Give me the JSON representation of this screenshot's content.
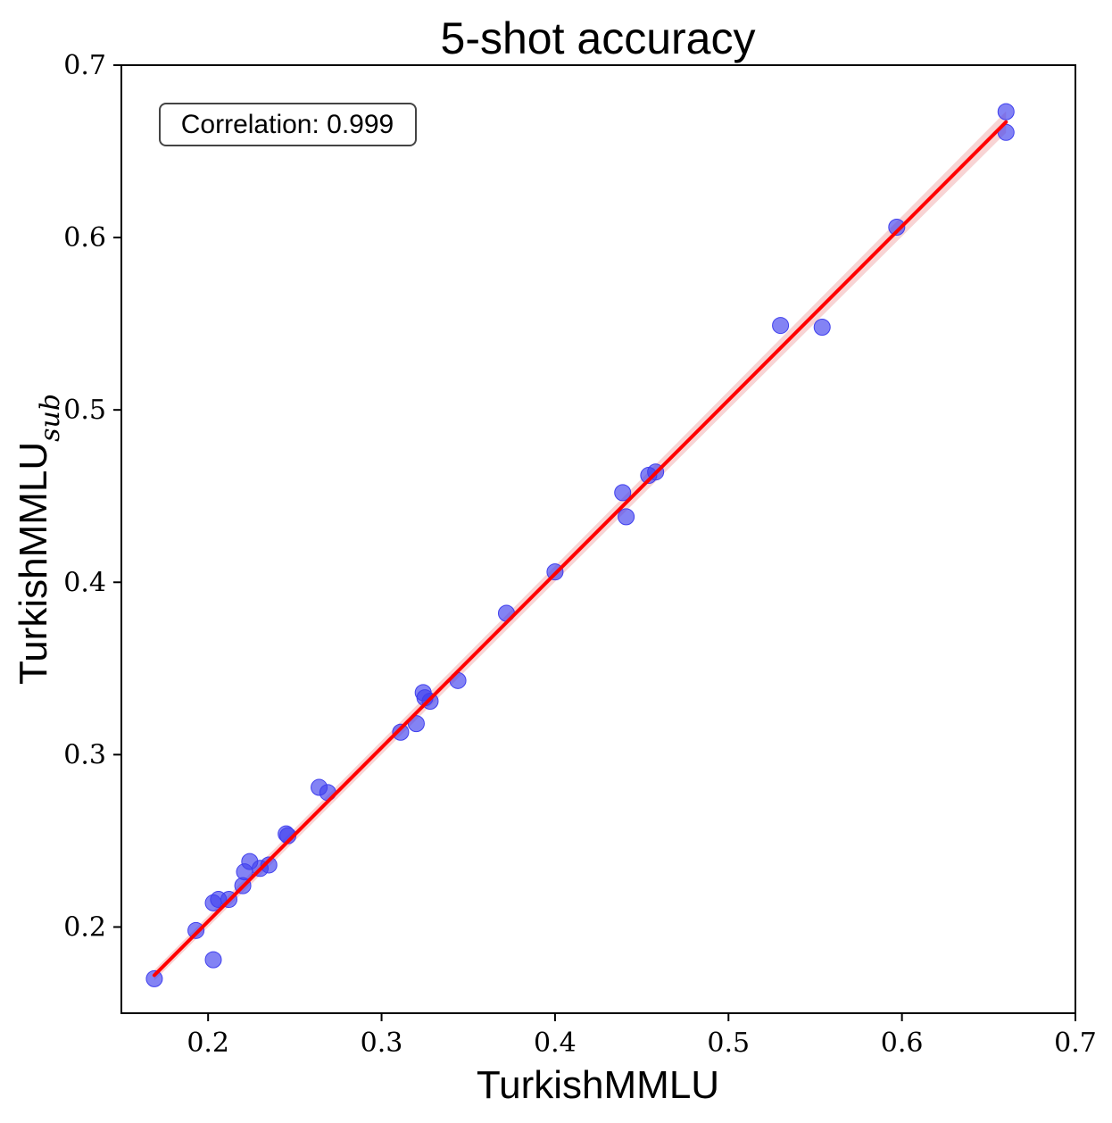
{
  "chart_data": {
    "type": "scatter",
    "title": "5-shot accuracy",
    "xlabel": "TurkishMMLU",
    "ylabel": "TurkishMMLU",
    "ylabel_subscript": "sub",
    "xlim": [
      0.15,
      0.7
    ],
    "ylim": [
      0.15,
      0.7
    ],
    "xticks": [
      "0.2",
      "0.3",
      "0.4",
      "0.5",
      "0.6",
      "0.7"
    ],
    "yticks": [
      "0.2",
      "0.3",
      "0.4",
      "0.5",
      "0.6",
      "0.7"
    ],
    "grid": false,
    "annotation": "Correlation: 0.999",
    "point_color": "#4040ee",
    "line_color": "#ff0000",
    "band_color": "#f4b8b8",
    "fit_line": {
      "x": [
        0.169,
        0.66
      ],
      "y": [
        0.172,
        0.667
      ]
    },
    "points": [
      {
        "x": 0.169,
        "y": 0.17
      },
      {
        "x": 0.193,
        "y": 0.198
      },
      {
        "x": 0.203,
        "y": 0.181
      },
      {
        "x": 0.203,
        "y": 0.214
      },
      {
        "x": 0.206,
        "y": 0.216
      },
      {
        "x": 0.212,
        "y": 0.216
      },
      {
        "x": 0.22,
        "y": 0.224
      },
      {
        "x": 0.221,
        "y": 0.232
      },
      {
        "x": 0.224,
        "y": 0.238
      },
      {
        "x": 0.23,
        "y": 0.234
      },
      {
        "x": 0.235,
        "y": 0.236
      },
      {
        "x": 0.245,
        "y": 0.254
      },
      {
        "x": 0.246,
        "y": 0.253
      },
      {
        "x": 0.264,
        "y": 0.281
      },
      {
        "x": 0.269,
        "y": 0.278
      },
      {
        "x": 0.311,
        "y": 0.313
      },
      {
        "x": 0.32,
        "y": 0.318
      },
      {
        "x": 0.324,
        "y": 0.336
      },
      {
        "x": 0.325,
        "y": 0.333
      },
      {
        "x": 0.328,
        "y": 0.331
      },
      {
        "x": 0.344,
        "y": 0.343
      },
      {
        "x": 0.372,
        "y": 0.382
      },
      {
        "x": 0.4,
        "y": 0.406
      },
      {
        "x": 0.439,
        "y": 0.452
      },
      {
        "x": 0.441,
        "y": 0.438
      },
      {
        "x": 0.454,
        "y": 0.462
      },
      {
        "x": 0.458,
        "y": 0.464
      },
      {
        "x": 0.53,
        "y": 0.549
      },
      {
        "x": 0.554,
        "y": 0.548
      },
      {
        "x": 0.597,
        "y": 0.606
      },
      {
        "x": 0.66,
        "y": 0.673
      },
      {
        "x": 0.66,
        "y": 0.661
      }
    ]
  }
}
